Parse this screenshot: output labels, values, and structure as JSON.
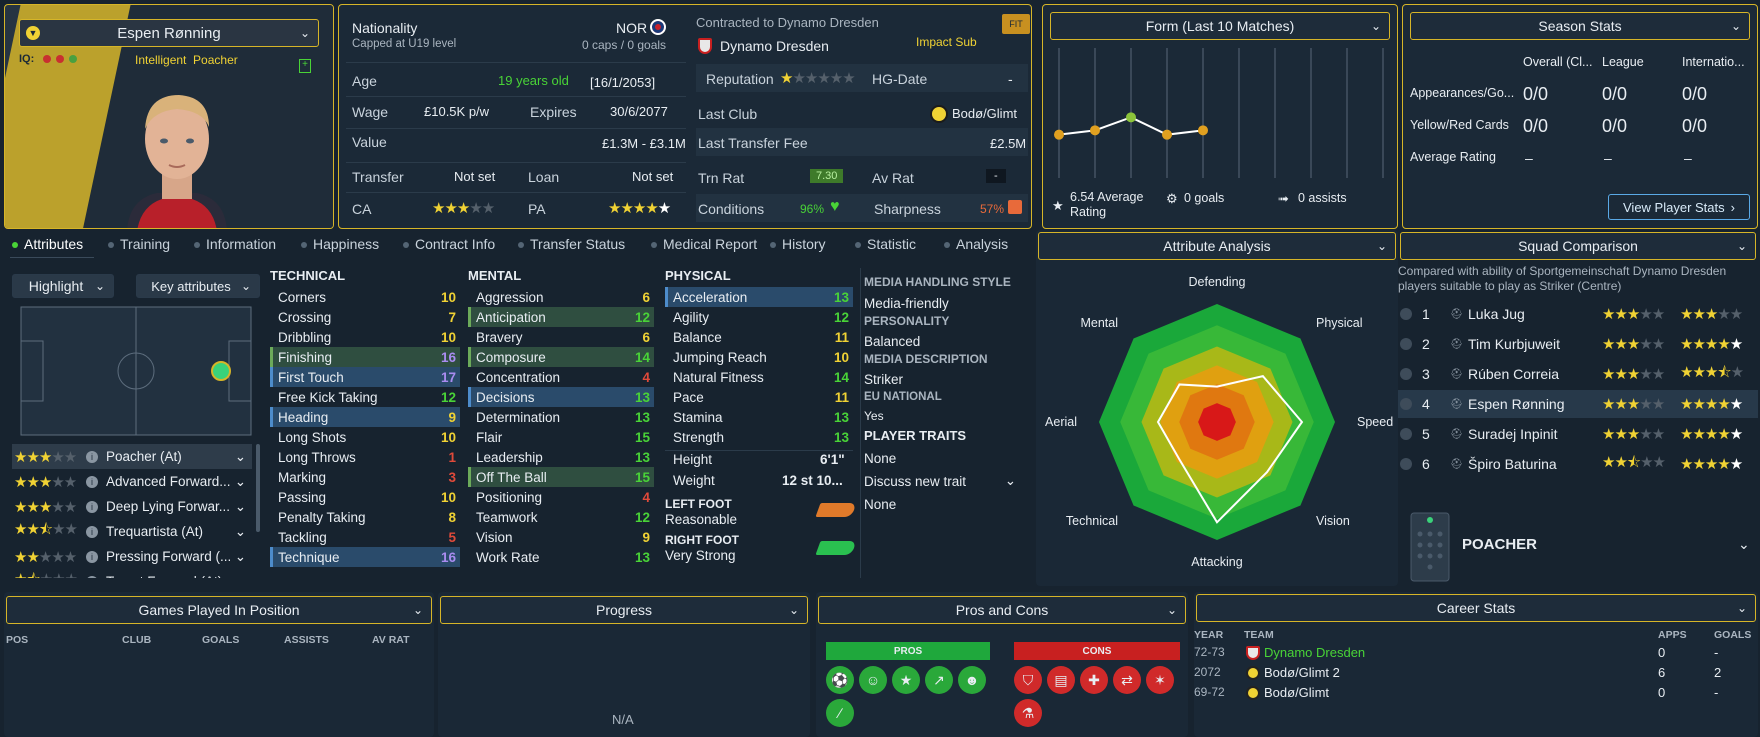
{
  "colors": {
    "accent": "#d6b528",
    "green": "#49d337",
    "yellow": "#f0d234",
    "red": "#e04a3a",
    "pros": "#1fa83c",
    "cons": "#c82020"
  },
  "player": {
    "name": "Espen Rønning",
    "iq_label": "IQ:",
    "role_label": "Intelligent  Poacher"
  },
  "info": {
    "nationality_label": "Nationality",
    "nationality_sub": "Capped at U19 level",
    "nation_code": "NOR",
    "caps": "0 caps / 0 goals",
    "contracted": "Contracted to Dynamo Dresden",
    "club": "Dynamo Dresden",
    "fit": "FIT",
    "status": "Impact Sub",
    "age_label": "Age",
    "age_value": "19 years old",
    "dob": "[16/1/2053]",
    "reputation_label": "Reputation",
    "hg_label": "HG-Date",
    "hg_value": "-",
    "wage_label": "Wage",
    "wage_value": "£10.5K p/w",
    "expires_label": "Expires",
    "expires_value": "30/6/2077",
    "lastclub_label": "Last Club",
    "lastclub_value": "Bodø/Glimt",
    "value_label": "Value",
    "value_value": "£1.3M - £3.1M",
    "ltf_label": "Last Transfer Fee",
    "ltf_value": "£2.5M",
    "transfer_label": "Transfer",
    "transfer_value": "Not set",
    "loan_label": "Loan",
    "loan_value": "Not set",
    "trnrat_label": "Trn Rat",
    "trnrat_value": "7.30",
    "avrat_label": "Av Rat",
    "avrat_value": "-",
    "ca_label": "CA",
    "ca_stars": 3,
    "pa_label": "PA",
    "pa_stars": 5,
    "conditions_label": "Conditions",
    "conditions_value": "96%",
    "sharpness_label": "Sharpness",
    "sharpness_value": "57%"
  },
  "form": {
    "title": "Form (Last 10 Matches)",
    "values": [
      6.5,
      6.55,
      6.7,
      6.5,
      6.55
    ],
    "avg": "6.54 Average Rating",
    "goals": "0 goals",
    "assists": "0 assists"
  },
  "season": {
    "title": "Season Stats",
    "cols": [
      "Overall (Cl...",
      "League",
      "Internatio..."
    ],
    "rows": [
      {
        "label": "Appearances/Go...",
        "vals": [
          "0/0",
          "0/0",
          "0/0"
        ]
      },
      {
        "label": "Yellow/Red Cards",
        "vals": [
          "0/0",
          "0/0",
          "0/0"
        ]
      },
      {
        "label": "Average Rating",
        "vals": [
          "–",
          "–",
          "–"
        ]
      }
    ],
    "button": "View Player Stats"
  },
  "tabs": [
    "Attributes",
    "Training",
    "Information",
    "Happiness",
    "Contract Info",
    "Transfer Status",
    "Medical Report",
    "History",
    "Statistic",
    "Analysis"
  ],
  "left": {
    "highlight": "Highlight",
    "key": "Key attributes",
    "roles": [
      {
        "name": "Poacher (At)",
        "stars": 3
      },
      {
        "name": "Advanced Forward...",
        "stars": 3
      },
      {
        "name": "Deep Lying Forwar...",
        "stars": 3
      },
      {
        "name": "Trequartista (At)",
        "stars": 2.5
      },
      {
        "name": "Pressing Forward (...",
        "stars": 2
      },
      {
        "name": "Target Forward (At)",
        "stars": 1.5
      }
    ]
  },
  "technical": {
    "title": "TECHNICAL",
    "items": [
      {
        "n": "Corners",
        "v": "10",
        "c": "y"
      },
      {
        "n": "Crossing",
        "v": "7",
        "c": "y"
      },
      {
        "n": "Dribbling",
        "v": "10",
        "c": "y"
      },
      {
        "n": "Finishing",
        "v": "16",
        "c": "p",
        "h": "g"
      },
      {
        "n": "First Touch",
        "v": "17",
        "c": "p",
        "h": "b"
      },
      {
        "n": "Free Kick Taking",
        "v": "12",
        "c": "g"
      },
      {
        "n": "Heading",
        "v": "9",
        "c": "y",
        "h": "b"
      },
      {
        "n": "Long Shots",
        "v": "10",
        "c": "y"
      },
      {
        "n": "Long Throws",
        "v": "1",
        "c": "r"
      },
      {
        "n": "Marking",
        "v": "3",
        "c": "r"
      },
      {
        "n": "Passing",
        "v": "10",
        "c": "y"
      },
      {
        "n": "Penalty Taking",
        "v": "8",
        "c": "y"
      },
      {
        "n": "Tackling",
        "v": "5",
        "c": "r"
      },
      {
        "n": "Technique",
        "v": "16",
        "c": "p",
        "h": "b"
      }
    ]
  },
  "mental": {
    "title": "MENTAL",
    "items": [
      {
        "n": "Aggression",
        "v": "6",
        "c": "y"
      },
      {
        "n": "Anticipation",
        "v": "12",
        "c": "g",
        "h": "g"
      },
      {
        "n": "Bravery",
        "v": "6",
        "c": "y"
      },
      {
        "n": "Composure",
        "v": "14",
        "c": "g",
        "h": "g"
      },
      {
        "n": "Concentration",
        "v": "4",
        "c": "r"
      },
      {
        "n": "Decisions",
        "v": "13",
        "c": "g",
        "h": "b"
      },
      {
        "n": "Determination",
        "v": "13",
        "c": "g"
      },
      {
        "n": "Flair",
        "v": "15",
        "c": "g"
      },
      {
        "n": "Leadership",
        "v": "13",
        "c": "g"
      },
      {
        "n": "Off The Ball",
        "v": "15",
        "c": "g",
        "h": "g"
      },
      {
        "n": "Positioning",
        "v": "4",
        "c": "r"
      },
      {
        "n": "Teamwork",
        "v": "12",
        "c": "g"
      },
      {
        "n": "Vision",
        "v": "9",
        "c": "y"
      },
      {
        "n": "Work Rate",
        "v": "13",
        "c": "g"
      }
    ]
  },
  "physical": {
    "title": "PHYSICAL",
    "items": [
      {
        "n": "Acceleration",
        "v": "13",
        "c": "g",
        "h": "b"
      },
      {
        "n": "Agility",
        "v": "12",
        "c": "g"
      },
      {
        "n": "Balance",
        "v": "11",
        "c": "y"
      },
      {
        "n": "Jumping Reach",
        "v": "10",
        "c": "y"
      },
      {
        "n": "Natural Fitness",
        "v": "14",
        "c": "g"
      },
      {
        "n": "Pace",
        "v": "11",
        "c": "y"
      },
      {
        "n": "Stamina",
        "v": "13",
        "c": "g"
      },
      {
        "n": "Strength",
        "v": "13",
        "c": "g"
      }
    ],
    "height_label": "Height",
    "height": "6'1\"",
    "weight_label": "Weight",
    "weight": "12 st 10...",
    "lf_label": "LEFT FOOT",
    "lf": "Reasonable",
    "rf_label": "RIGHT FOOT",
    "rf": "Very Strong"
  },
  "media": {
    "mhs_label": "MEDIA HANDLING STYLE",
    "mhs": "Media-friendly",
    "pers_label": "PERSONALITY",
    "pers": "Balanced",
    "desc_label": "MEDIA DESCRIPTION",
    "desc": "Striker",
    "eu_label": "EU NATIONAL",
    "eu": "Yes",
    "traits_label": "PLAYER TRAITS",
    "traits": "None",
    "discuss": "Discuss new trait",
    "none2": "None"
  },
  "analysis": {
    "title": "Attribute Analysis",
    "axes": [
      "Defending",
      "Physical",
      "Speed",
      "Vision",
      "Attacking",
      "Technical",
      "Aerial",
      "Mental"
    ],
    "values": [
      0.3,
      0.55,
      0.72,
      0.6,
      0.85,
      0.45,
      0.5,
      0.45
    ]
  },
  "squad": {
    "title": "Squad Comparison",
    "desc": "Compared with ability of Sportgemeinschaft Dynamo Dresden players suitable to play as Striker (Centre)",
    "rows": [
      {
        "i": "1",
        "name": "Luka Jug",
        "ca": 3,
        "pa": 3
      },
      {
        "i": "2",
        "name": "Tim Kurbjuweit",
        "ca": 3,
        "pa": 4
      },
      {
        "i": "3",
        "name": "Rúben Correia",
        "ca": 3,
        "pa": 3.5
      },
      {
        "i": "4",
        "name": "Espen Rønning",
        "ca": 3,
        "pa": 5
      },
      {
        "i": "5",
        "name": "Suradej Inpinit",
        "ca": 3,
        "pa": 5
      },
      {
        "i": "6",
        "name": "Špiro Baturina",
        "ca": 2.5,
        "pa": 5
      }
    ],
    "position": "POACHER"
  },
  "games": {
    "title": "Games Played In Position",
    "cols": [
      "POS",
      "CLUB",
      "GOALS",
      "ASSISTS",
      "AV RAT"
    ]
  },
  "progress": {
    "title": "Progress",
    "na": "N/A"
  },
  "proscons": {
    "title": "Pros and Cons",
    "pros": "PROS",
    "cons": "CONS"
  },
  "career": {
    "title": "Career Stats",
    "cols": [
      "YEAR",
      "TEAM",
      "APPS",
      "GOALS"
    ],
    "rows": [
      {
        "y": "72-73",
        "t": "Dynamo Dresden",
        "a": "0",
        "g": "-"
      },
      {
        "y": "2072",
        "t": "Bodø/Glimt 2",
        "a": "6",
        "g": "2"
      },
      {
        "y": "69-72",
        "t": "Bodø/Glimt",
        "a": "0",
        "g": "-"
      }
    ]
  }
}
